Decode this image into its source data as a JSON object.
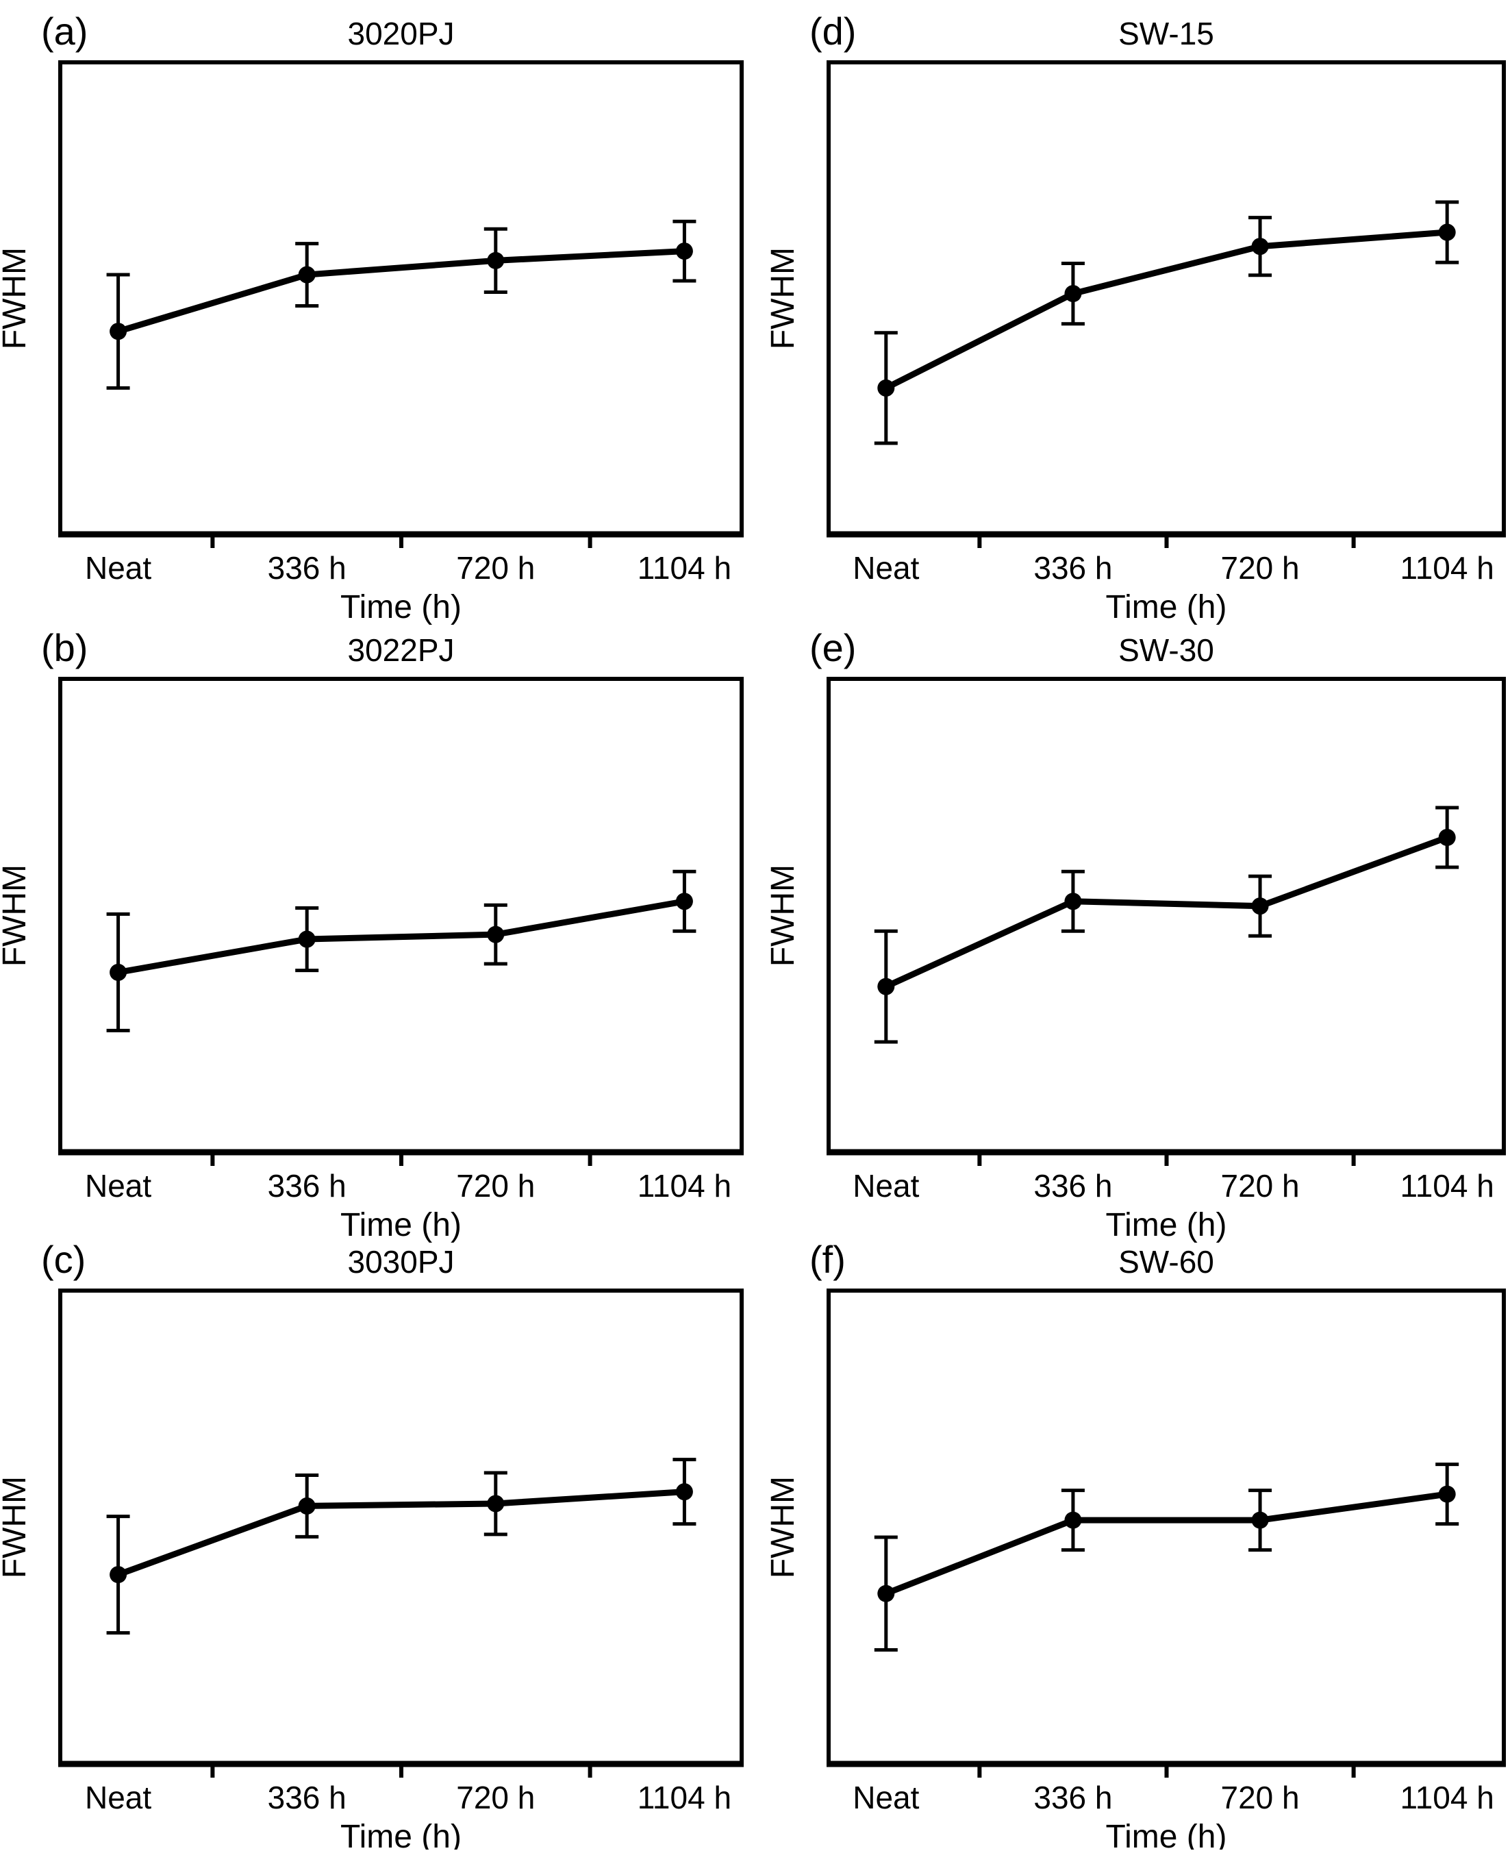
{
  "figure": {
    "background": "#ffffff",
    "foreground": "#000000",
    "x_axis_label": "Time (h)",
    "y_axis_label": "FWHM",
    "categories": [
      "Neat",
      "336 h",
      "720 h",
      "1104 h"
    ],
    "y_axis_note": "no y tick labels; values are fractions of axis height (arbitrary units)"
  },
  "chart_data": [
    {
      "type": "line",
      "letter": "(a)",
      "title": "3020PJ",
      "xlabel": "Time (h)",
      "ylabel": "FWHM",
      "categories": [
        "Neat",
        "336 h",
        "720 h",
        "1104 h"
      ],
      "y_values_fraction_of_axis": [
        0.43,
        0.55,
        0.58,
        0.6
      ],
      "y_error_fraction_of_axis": [
        0.12,
        0.066,
        0.067,
        0.063
      ],
      "ylim": [
        0,
        1
      ],
      "grid": false,
      "legend": "none",
      "marker": "filled-circle",
      "color": "#000000"
    },
    {
      "type": "line",
      "letter": "(b)",
      "title": "3022PJ",
      "xlabel": "Time (h)",
      "ylabel": "FWHM",
      "categories": [
        "Neat",
        "336 h",
        "720 h",
        "1104 h"
      ],
      "y_values_fraction_of_axis": [
        0.38,
        0.45,
        0.46,
        0.53
      ],
      "y_error_fraction_of_axis": [
        0.123,
        0.066,
        0.062,
        0.063
      ],
      "ylim": [
        0,
        1
      ],
      "grid": false,
      "legend": "none",
      "marker": "filled-circle",
      "color": "#000000"
    },
    {
      "type": "line",
      "letter": "(c)",
      "title": "3030PJ",
      "xlabel": "Time (h)",
      "ylabel": "FWHM",
      "categories": [
        "Neat",
        "336 h",
        "720 h",
        "1104 h"
      ],
      "y_values_fraction_of_axis": [
        0.4,
        0.545,
        0.55,
        0.575
      ],
      "y_error_fraction_of_axis": [
        0.123,
        0.065,
        0.065,
        0.068
      ],
      "ylim": [
        0,
        1
      ],
      "grid": false,
      "legend": "none",
      "marker": "filled-circle",
      "color": "#000000"
    },
    {
      "type": "line",
      "letter": "(d)",
      "title": "SW-15",
      "xlabel": "Time (h)",
      "ylabel": "FWHM",
      "categories": [
        "Neat",
        "336 h",
        "720 h",
        "1104 h"
      ],
      "y_values_fraction_of_axis": [
        0.31,
        0.51,
        0.61,
        0.64
      ],
      "y_error_fraction_of_axis": [
        0.117,
        0.064,
        0.061,
        0.064
      ],
      "ylim": [
        0,
        1
      ],
      "grid": false,
      "legend": "none",
      "marker": "filled-circle",
      "color": "#000000"
    },
    {
      "type": "line",
      "letter": "(e)",
      "title": "SW-30",
      "xlabel": "Time (h)",
      "ylabel": "FWHM",
      "categories": [
        "Neat",
        "336 h",
        "720 h",
        "1104 h"
      ],
      "y_values_fraction_of_axis": [
        0.35,
        0.53,
        0.52,
        0.665
      ],
      "y_error_fraction_of_axis": [
        0.117,
        0.063,
        0.063,
        0.063
      ],
      "ylim": [
        0,
        1
      ],
      "grid": false,
      "legend": "none",
      "marker": "filled-circle",
      "color": "#000000"
    },
    {
      "type": "line",
      "letter": "(f)",
      "title": "SW-60",
      "xlabel": "Time (h)",
      "ylabel": "FWHM",
      "categories": [
        "Neat",
        "336 h",
        "720 h",
        "1104 h"
      ],
      "y_values_fraction_of_axis": [
        0.36,
        0.515,
        0.515,
        0.57
      ],
      "y_error_fraction_of_axis": [
        0.119,
        0.063,
        0.063,
        0.063
      ],
      "ylim": [
        0,
        1
      ],
      "grid": false,
      "legend": "none",
      "marker": "filled-circle",
      "color": "#000000"
    }
  ]
}
